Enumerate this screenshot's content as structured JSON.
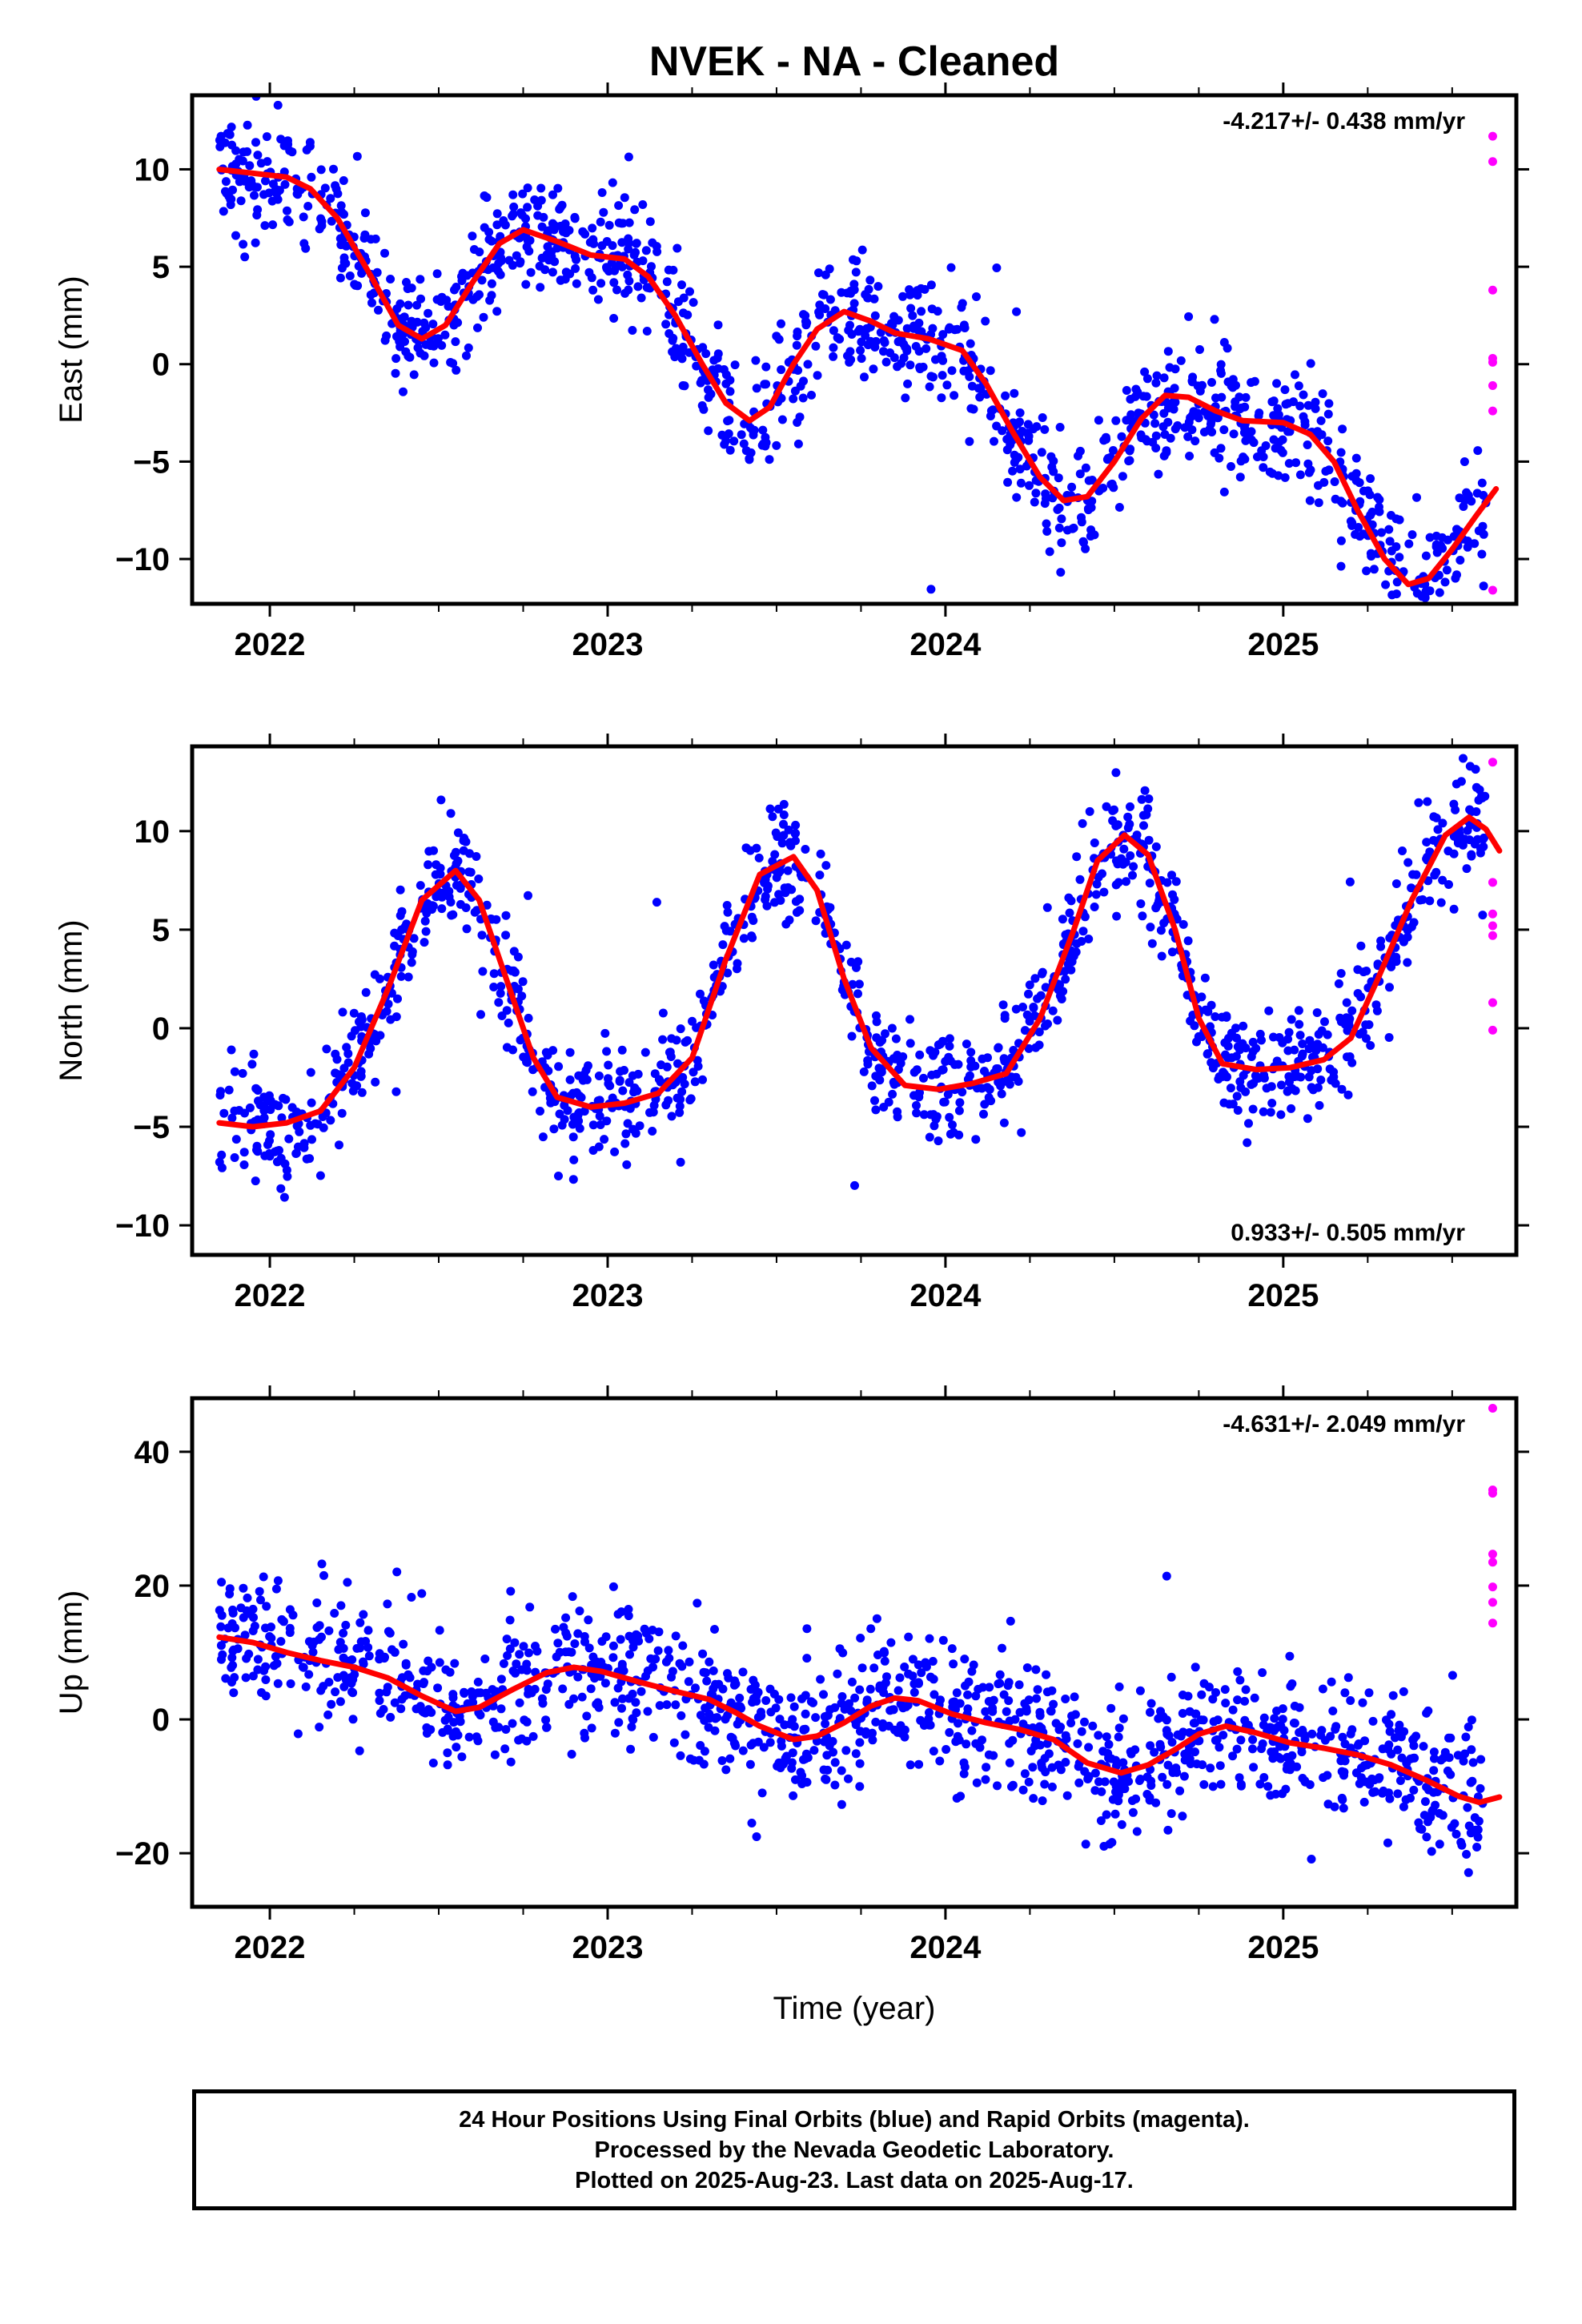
{
  "title": "NVEK  - NA - Cleaned",
  "colors": {
    "final_orbits": "#0000ff",
    "rapid_orbits": "#ff00ff",
    "model_fit": "#ff0000",
    "frame": "#000000"
  },
  "footer": {
    "line1": "24 Hour Positions Using Final Orbits (blue) and Rapid Orbits (magenta).",
    "line2": "Processed by the Nevada Geodetic Laboratory.",
    "line3": "Plotted on 2025-Aug-23. Last data on 2025-Aug-17."
  },
  "chart_data": [
    {
      "type": "scatter",
      "component": "east",
      "ylabel": "East (mm)",
      "xlabel": "",
      "rate_label": "-4.217+/- 0.438 mm/yr",
      "rate_position": "top-right",
      "xlim": [
        2021.77,
        2025.69
      ],
      "ylim": [
        -12.3,
        13.8
      ],
      "x_ticks": [
        2022,
        2023,
        2024,
        2025
      ],
      "y_ticks": [
        -10,
        -5,
        0,
        5,
        10
      ],
      "trend": {
        "x0": 2021.85,
        "y0": 9.9,
        "rate": -4.217
      },
      "scatter_sd": 1.5,
      "fit": [
        [
          2021.85,
          10.0
        ],
        [
          2021.95,
          9.8
        ],
        [
          2022.05,
          9.6
        ],
        [
          2022.12,
          9.0
        ],
        [
          2022.2,
          7.5
        ],
        [
          2022.3,
          4.5
        ],
        [
          2022.38,
          2.0
        ],
        [
          2022.45,
          1.3
        ],
        [
          2022.52,
          2.0
        ],
        [
          2022.6,
          4.2
        ],
        [
          2022.68,
          6.2
        ],
        [
          2022.75,
          6.9
        ],
        [
          2022.85,
          6.3
        ],
        [
          2022.95,
          5.6
        ],
        [
          2023.05,
          5.4
        ],
        [
          2023.12,
          4.5
        ],
        [
          2023.2,
          2.5
        ],
        [
          2023.28,
          0.0
        ],
        [
          2023.35,
          -2.0
        ],
        [
          2023.42,
          -2.9
        ],
        [
          2023.48,
          -2.2
        ],
        [
          2023.55,
          0.0
        ],
        [
          2023.62,
          1.8
        ],
        [
          2023.7,
          2.7
        ],
        [
          2023.78,
          2.2
        ],
        [
          2023.85,
          1.6
        ],
        [
          2023.95,
          1.3
        ],
        [
          2024.05,
          0.7
        ],
        [
          2024.12,
          -1.0
        ],
        [
          2024.2,
          -3.5
        ],
        [
          2024.28,
          -5.8
        ],
        [
          2024.35,
          -7.0
        ],
        [
          2024.42,
          -6.8
        ],
        [
          2024.5,
          -5.0
        ],
        [
          2024.58,
          -2.8
        ],
        [
          2024.65,
          -1.6
        ],
        [
          2024.72,
          -1.7
        ],
        [
          2024.8,
          -2.4
        ],
        [
          2024.88,
          -2.9
        ],
        [
          2025.0,
          -3.0
        ],
        [
          2025.08,
          -3.6
        ],
        [
          2025.15,
          -5.0
        ],
        [
          2025.22,
          -7.5
        ],
        [
          2025.3,
          -10.0
        ],
        [
          2025.37,
          -11.3
        ],
        [
          2025.43,
          -11.0
        ],
        [
          2025.5,
          -9.5
        ],
        [
          2025.57,
          -7.8
        ],
        [
          2025.63,
          -6.4
        ]
      ],
      "rapid": {
        "x": 2025.62,
        "values": [
          11.7,
          10.4,
          3.8,
          0.3,
          0.1,
          -1.1,
          -2.4,
          -11.6
        ]
      }
    },
    {
      "type": "scatter",
      "component": "north",
      "ylabel": "North (mm)",
      "xlabel": "",
      "rate_label": "0.933+/- 0.505 mm/yr",
      "rate_position": "bottom-right",
      "xlim": [
        2021.77,
        2025.69
      ],
      "ylim": [
        -11.5,
        14.3
      ],
      "x_ticks": [
        2022,
        2023,
        2024,
        2025
      ],
      "y_ticks": [
        -10,
        -5,
        0,
        5,
        10
      ],
      "trend": {
        "x0": 2021.85,
        "y0": 0.0,
        "rate": 0.933
      },
      "scatter_sd": 1.4,
      "fit": [
        [
          2021.85,
          -4.8
        ],
        [
          2021.95,
          -5.0
        ],
        [
          2022.05,
          -4.8
        ],
        [
          2022.15,
          -4.2
        ],
        [
          2022.25,
          -2.0
        ],
        [
          2022.35,
          2.0
        ],
        [
          2022.45,
          6.5
        ],
        [
          2022.55,
          8.0
        ],
        [
          2022.62,
          6.5
        ],
        [
          2022.7,
          2.5
        ],
        [
          2022.78,
          -1.5
        ],
        [
          2022.85,
          -3.5
        ],
        [
          2022.95,
          -4.0
        ],
        [
          2023.05,
          -3.8
        ],
        [
          2023.15,
          -3.3
        ],
        [
          2023.25,
          -1.5
        ],
        [
          2023.35,
          3.5
        ],
        [
          2023.45,
          7.8
        ],
        [
          2023.55,
          8.7
        ],
        [
          2023.62,
          7.0
        ],
        [
          2023.7,
          2.5
        ],
        [
          2023.78,
          -1.0
        ],
        [
          2023.88,
          -2.9
        ],
        [
          2023.98,
          -3.1
        ],
        [
          2024.08,
          -2.8
        ],
        [
          2024.18,
          -2.3
        ],
        [
          2024.28,
          0.5
        ],
        [
          2024.38,
          5.0
        ],
        [
          2024.45,
          8.5
        ],
        [
          2024.53,
          9.8
        ],
        [
          2024.6,
          8.8
        ],
        [
          2024.68,
          5.0
        ],
        [
          2024.75,
          0.5
        ],
        [
          2024.82,
          -1.8
        ],
        [
          2024.92,
          -2.1
        ],
        [
          2025.02,
          -2.0
        ],
        [
          2025.12,
          -1.6
        ],
        [
          2025.2,
          -0.5
        ],
        [
          2025.28,
          2.5
        ],
        [
          2025.38,
          6.5
        ],
        [
          2025.48,
          9.8
        ],
        [
          2025.55,
          10.7
        ],
        [
          2025.6,
          10.1
        ],
        [
          2025.64,
          9.0
        ]
      ],
      "rapid": {
        "x": 2025.62,
        "values": [
          13.5,
          7.4,
          5.8,
          5.2,
          4.7,
          1.3,
          -0.1
        ]
      }
    },
    {
      "type": "scatter",
      "component": "up",
      "ylabel": "Up (mm)",
      "xlabel": "Time (year)",
      "rate_label": "-4.631+/- 2.049 mm/yr",
      "rate_position": "top-right",
      "xlim": [
        2021.77,
        2025.69
      ],
      "ylim": [
        -28,
        48
      ],
      "x_ticks": [
        2022,
        2023,
        2024,
        2025
      ],
      "y_ticks": [
        -20,
        0,
        20,
        40
      ],
      "trend": {
        "x0": 2021.85,
        "y0": 5.0,
        "rate": -4.631
      },
      "scatter_sd": 5.0,
      "fit": [
        [
          2021.85,
          12.3
        ],
        [
          2021.95,
          11.5
        ],
        [
          2022.05,
          10.0
        ],
        [
          2022.15,
          8.8
        ],
        [
          2022.25,
          7.8
        ],
        [
          2022.35,
          6.2
        ],
        [
          2022.45,
          3.5
        ],
        [
          2022.55,
          1.2
        ],
        [
          2022.62,
          1.8
        ],
        [
          2022.72,
          4.5
        ],
        [
          2022.82,
          7.0
        ],
        [
          2022.9,
          7.8
        ],
        [
          2022.98,
          7.2
        ],
        [
          2023.1,
          5.5
        ],
        [
          2023.2,
          4.2
        ],
        [
          2023.3,
          3.0
        ],
        [
          2023.38,
          1.0
        ],
        [
          2023.45,
          -1.0
        ],
        [
          2023.55,
          -3.0
        ],
        [
          2023.62,
          -2.5
        ],
        [
          2023.7,
          -0.5
        ],
        [
          2023.78,
          2.0
        ],
        [
          2023.85,
          3.2
        ],
        [
          2023.92,
          2.8
        ],
        [
          2024.02,
          0.8
        ],
        [
          2024.12,
          -0.5
        ],
        [
          2024.22,
          -1.5
        ],
        [
          2024.32,
          -3.0
        ],
        [
          2024.42,
          -6.5
        ],
        [
          2024.52,
          -8.0
        ],
        [
          2024.6,
          -6.8
        ],
        [
          2024.68,
          -4.5
        ],
        [
          2024.75,
          -2.2
        ],
        [
          2024.83,
          -1.0
        ],
        [
          2024.92,
          -2.0
        ],
        [
          2025.02,
          -3.5
        ],
        [
          2025.12,
          -4.3
        ],
        [
          2025.22,
          -5.3
        ],
        [
          2025.32,
          -6.8
        ],
        [
          2025.42,
          -9.0
        ],
        [
          2025.52,
          -11.5
        ],
        [
          2025.58,
          -12.4
        ],
        [
          2025.64,
          -11.6
        ]
      ],
      "rapid": {
        "x": 2025.62,
        "values": [
          46.5,
          34.3,
          33.8,
          24.7,
          23.5,
          19.8,
          17.5,
          14.4
        ]
      }
    }
  ]
}
